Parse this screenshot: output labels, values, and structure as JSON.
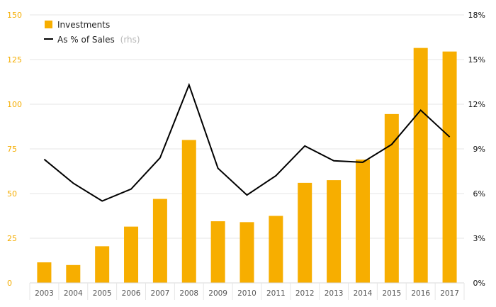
{
  "chart_data": {
    "type": "bar",
    "categories": [
      "2003",
      "2004",
      "2005",
      "2006",
      "2007",
      "2008",
      "2009",
      "2010",
      "2011",
      "2012",
      "2013",
      "2014",
      "2015",
      "2016",
      "2017"
    ],
    "series": [
      {
        "name": "Investments",
        "type": "bar",
        "axis": "left",
        "color": "#f7ae00",
        "values": [
          11.5,
          10,
          20.5,
          31.5,
          47,
          80,
          34.5,
          34,
          37.5,
          56,
          57.5,
          69,
          94.5,
          131.5,
          129.5
        ]
      },
      {
        "name": "As % of Sales",
        "name_suffix": "(rhs)",
        "type": "line",
        "axis": "right",
        "color": "#000000",
        "values": [
          8.3,
          6.7,
          5.5,
          6.3,
          8.4,
          13.3,
          7.7,
          5.9,
          7.2,
          9.2,
          8.2,
          8.1,
          9.3,
          11.6,
          9.8
        ]
      }
    ],
    "y_left": {
      "ylim": [
        0,
        150
      ],
      "ticks": [
        "0",
        "25",
        "50",
        "75",
        "100",
        "125",
        "150"
      ],
      "color": "#f5ad00"
    },
    "y_right": {
      "ylim": [
        0,
        18
      ],
      "ticks": [
        "0%",
        "3%",
        "6%",
        "9%",
        "12%",
        "15%",
        "18%"
      ],
      "color": "#111111"
    },
    "grid": true,
    "legend_position": "top-left",
    "colors": {
      "background": "#ffffff",
      "grid": "#e6e6e6",
      "axis": "#d8d8d8"
    }
  }
}
